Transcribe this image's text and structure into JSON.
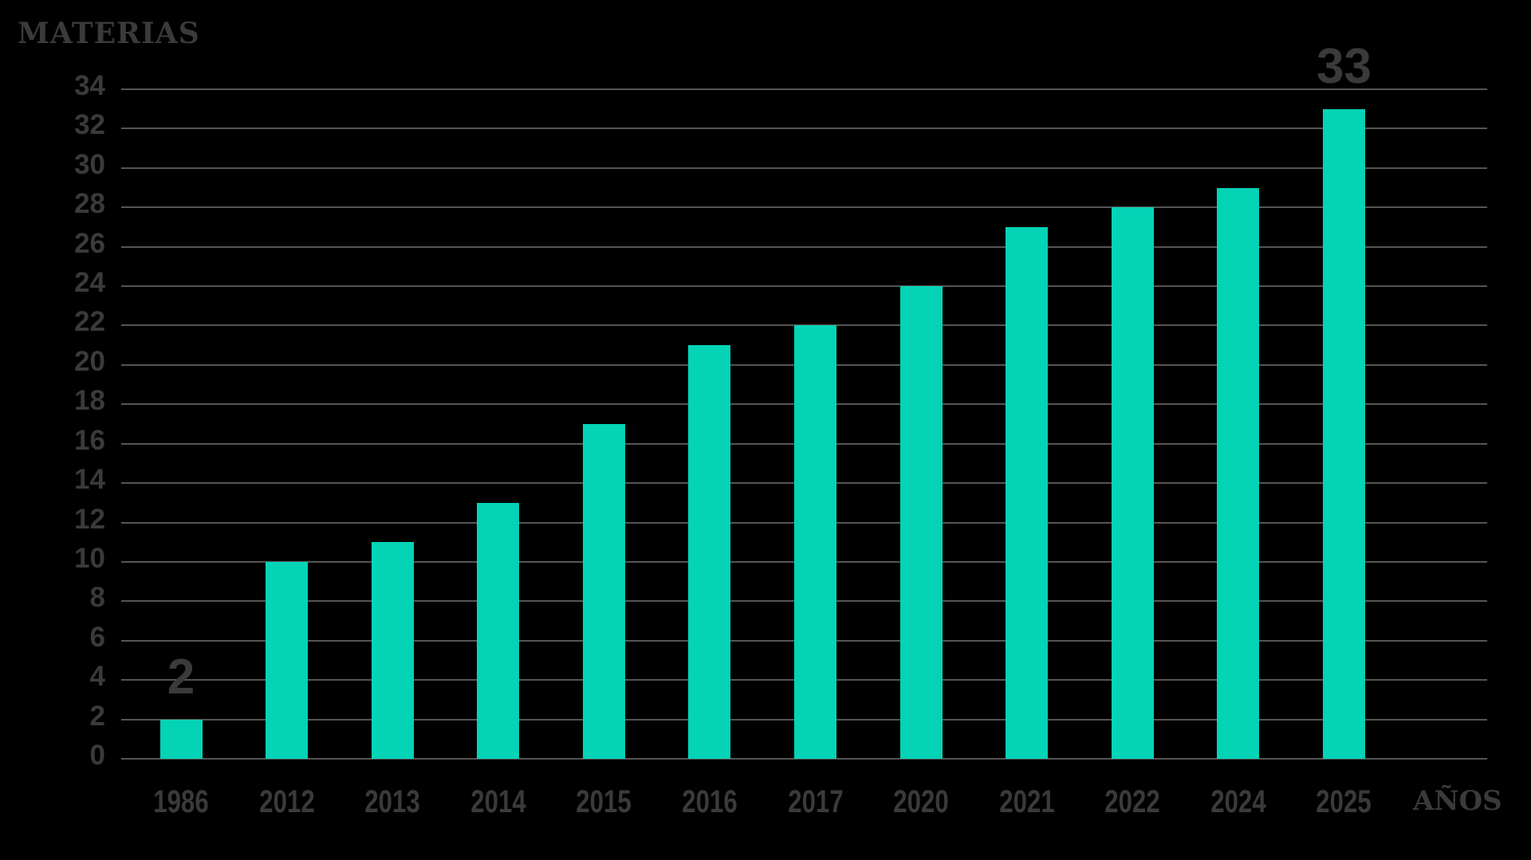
{
  "chart_data": {
    "type": "bar",
    "title": "MATERIAS",
    "xlabel": "AÑOS",
    "ylabel": "MATERIAS",
    "categories": [
      "1986",
      "2012",
      "2013",
      "2014",
      "2015",
      "2016",
      "2017",
      "2020",
      "2021",
      "2022",
      "2024",
      "2025"
    ],
    "values": [
      2,
      10,
      11,
      13,
      17,
      21,
      22,
      24,
      27,
      28,
      29,
      33
    ],
    "bar_labels": [
      {
        "category": "1986",
        "text": "2"
      },
      {
        "category": "2025",
        "text": "33"
      }
    ],
    "yticks": [
      0,
      2,
      4,
      6,
      8,
      10,
      12,
      14,
      16,
      18,
      20,
      22,
      24,
      26,
      28,
      30,
      32,
      34
    ],
    "ylim": [
      0,
      34
    ],
    "grid": true,
    "legend": false
  },
  "colors": {
    "background": "#000000",
    "bar": "#04d3b6",
    "text": "#3a3a3a",
    "gridline": "#555555"
  }
}
